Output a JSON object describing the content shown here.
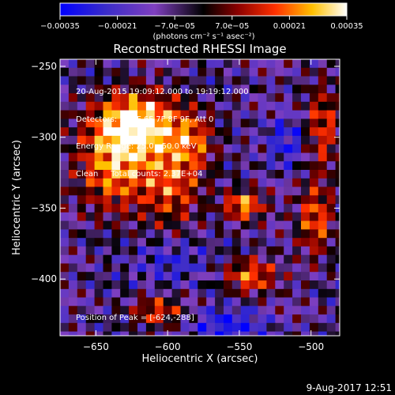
{
  "chart_data": {
    "type": "heatmap",
    "title": "Reconstructed RHESSI Image",
    "xlabel": "Heliocentric X (arcsec)",
    "ylabel": "Heliocentric Y (arcsec)",
    "xlim": [
      -675,
      -480
    ],
    "ylim": [
      -440,
      -245
    ],
    "x_ticks": [
      -650,
      -600,
      -550,
      -500
    ],
    "x_tick_labels": [
      "−650",
      "−600",
      "−550",
      "−500"
    ],
    "y_ticks": [
      -250,
      -300,
      -350,
      -400
    ],
    "y_tick_labels": [
      "−250",
      "−300",
      "−350",
      "−400"
    ],
    "colorbar": {
      "ticks": [
        -0.00035,
        -0.00021,
        -7e-05,
        7e-05,
        0.00021,
        0.00035
      ],
      "tick_labels": [
        "−0.00035",
        "−0.00021",
        "−7.0e−05",
        "7.0e−05",
        "0.00021",
        "0.00035"
      ],
      "units_label": "(photons cm⁻² s⁻¹ asec⁻²)",
      "colormap": [
        "#0000ff",
        "#3a2cc8",
        "#7f3fbf",
        "#000000",
        "#8b0000",
        "#ff3000",
        "#ffc000",
        "#ffffff"
      ]
    },
    "annotations": [
      "20-Aug-2015 19:09:12.000 to 19:19:12.000",
      "Detectors: 3F 5F 6F 7F 8F 9F, Att 0",
      "Energy Range: 25.0 - 50.0 keV",
      "Clean     Total counts: 2.37E+04"
    ],
    "peak_label": "Position of Peak = [-624,-288]",
    "peak": [
      -624,
      -288
    ]
  },
  "footer": {
    "timestamp": "9-Aug-2017 12:51"
  }
}
